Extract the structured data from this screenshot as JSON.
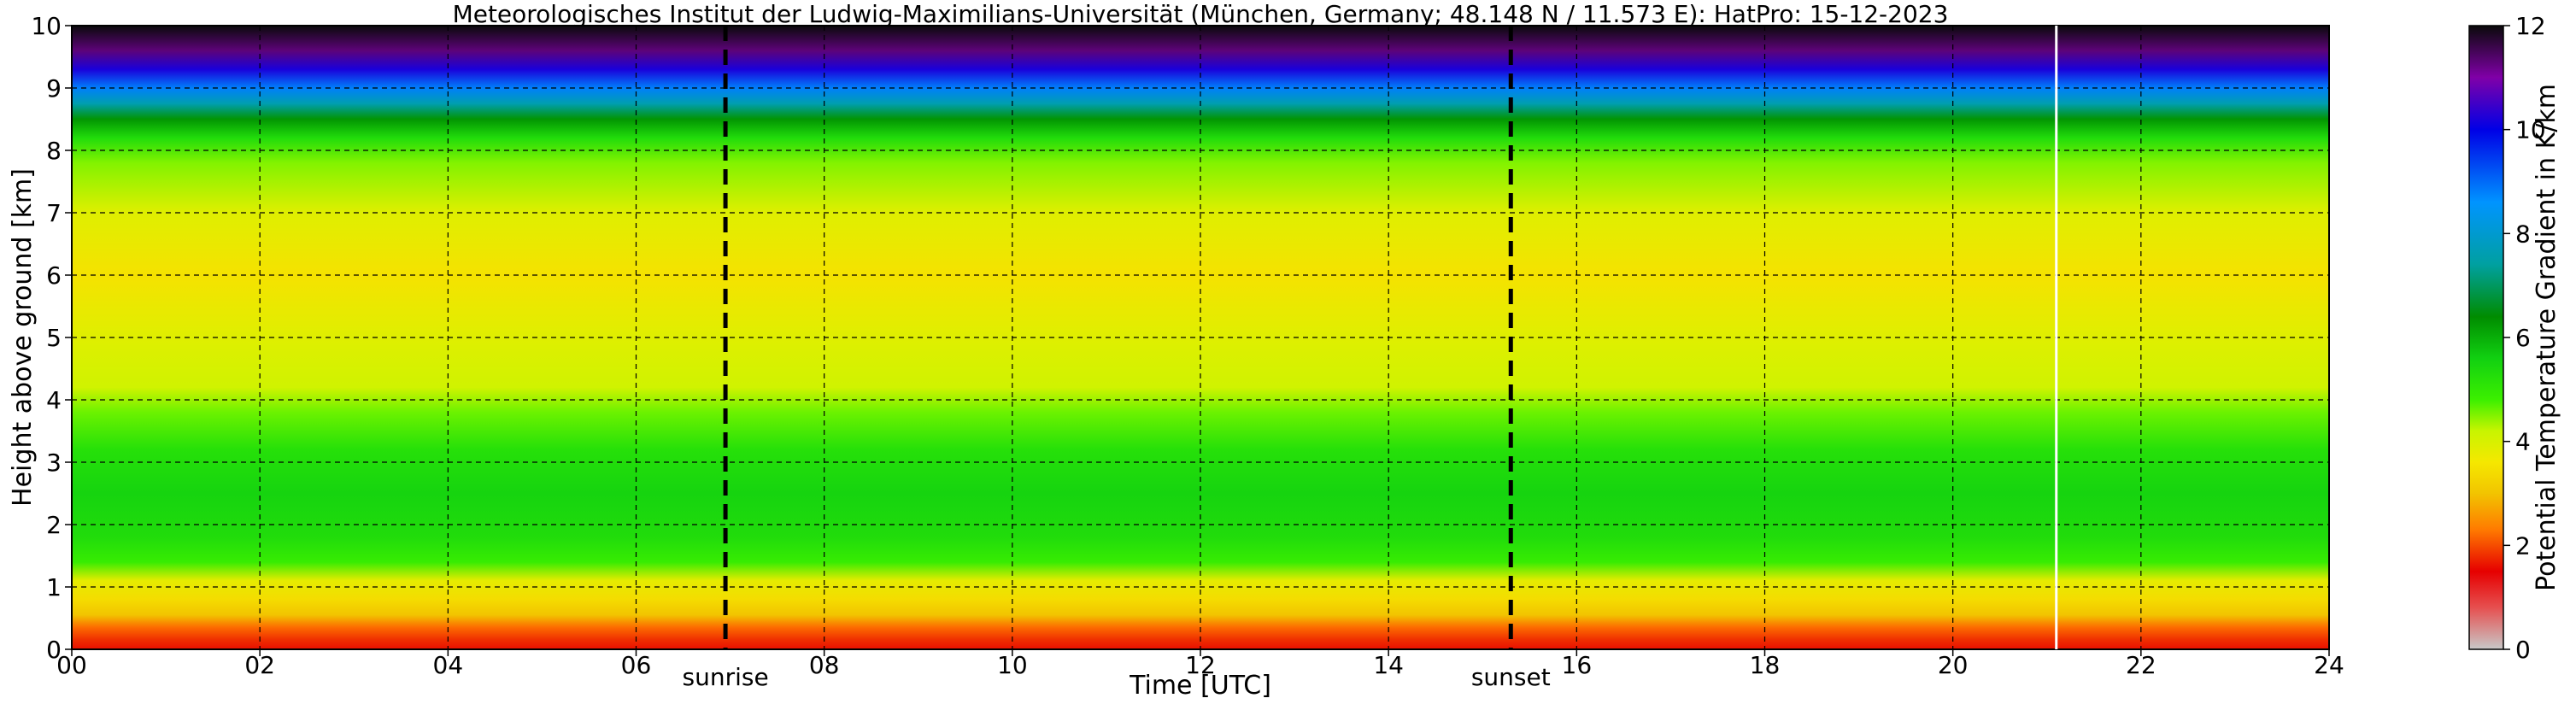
{
  "chart_data": {
    "type": "heatmap",
    "title": "Meteorologisches Institut der Ludwig-Maximilians-Universität (München, Germany; 48.148 N / 11.573 E):    HatPro: 15-12-2023",
    "xlabel": "Time [UTC]",
    "ylabel": "Height above ground [km]",
    "xlim": [
      0,
      24
    ],
    "ylim": [
      0,
      10
    ],
    "x_ticks": [
      0,
      2,
      4,
      6,
      8,
      10,
      12,
      14,
      16,
      18,
      20,
      22,
      24
    ],
    "x_tick_labels": [
      "00",
      "02",
      "04",
      "06",
      "08",
      "10",
      "12",
      "14",
      "16",
      "18",
      "20",
      "22",
      "24"
    ],
    "y_ticks": [
      0,
      1,
      2,
      3,
      4,
      5,
      6,
      7,
      8,
      9,
      10
    ],
    "y_tick_labels": [
      "0",
      "1",
      "2",
      "3",
      "4",
      "5",
      "6",
      "7",
      "8",
      "9",
      "10"
    ],
    "grid": true,
    "colorbar": {
      "label": "Potential Temperature Gradient in K/km",
      "range": [
        0,
        12
      ],
      "ticks": [
        0,
        2,
        4,
        6,
        8,
        10,
        12
      ],
      "tick_labels": [
        "0",
        "2",
        "4",
        "6",
        "8",
        "10",
        "12"
      ],
      "colors": [
        {
          "value": 0,
          "color": "#c8c8c8"
        },
        {
          "value": 0.8,
          "color": "#e65050"
        },
        {
          "value": 1.5,
          "color": "#e60000"
        },
        {
          "value": 2.3,
          "color": "#ff7a00"
        },
        {
          "value": 3.0,
          "color": "#f2c400"
        },
        {
          "value": 3.6,
          "color": "#f5e800"
        },
        {
          "value": 4.2,
          "color": "#c8f500"
        },
        {
          "value": 4.8,
          "color": "#3cf000"
        },
        {
          "value": 5.6,
          "color": "#11d011"
        },
        {
          "value": 6.4,
          "color": "#008c00"
        },
        {
          "value": 7.4,
          "color": "#00a0a0"
        },
        {
          "value": 8.6,
          "color": "#0094ff"
        },
        {
          "value": 10.0,
          "color": "#0000e6"
        },
        {
          "value": 11.0,
          "color": "#8000a8"
        },
        {
          "value": 12,
          "color": "#0a0a0a"
        }
      ]
    },
    "gradient_profile": {
      "heights_km": [
        0,
        0.15,
        0.35,
        0.55,
        0.8,
        1.1,
        1.4,
        1.8,
        2.5,
        3.2,
        3.8,
        4.2,
        5.0,
        6.0,
        7.0,
        7.8,
        8.2,
        8.5,
        8.75,
        9.0,
        9.3,
        9.6,
        10.0
      ],
      "values": [
        1.6,
        1.8,
        2.2,
        3.0,
        3.4,
        3.8,
        4.9,
        5.3,
        5.5,
        5.2,
        4.6,
        4.1,
        3.9,
        3.5,
        3.9,
        4.5,
        5.3,
        6.3,
        7.6,
        8.8,
        10.2,
        11.3,
        12
      ]
    },
    "markers": [
      {
        "label": "sunrise",
        "time": 6.95,
        "style": "dashed"
      },
      {
        "label": "sunset",
        "time": 15.3,
        "style": "dashed"
      }
    ],
    "data_end_time": 21.1
  }
}
